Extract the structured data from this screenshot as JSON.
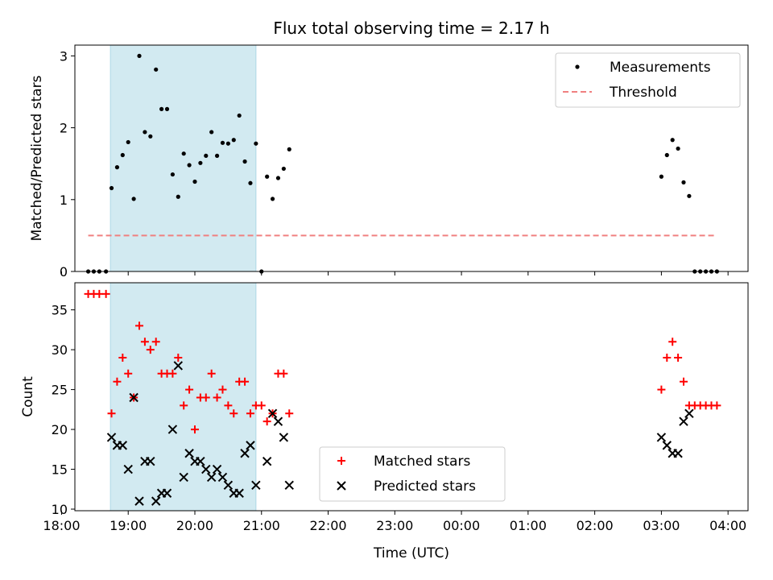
{
  "chart_data": {
    "title": "Flux total observing time = 2.17 h",
    "xlabel": "Time (UTC)",
    "time_base": "18:00",
    "x_ticks": [
      "18:00",
      "19:00",
      "20:00",
      "21:00",
      "22:00",
      "23:00",
      "00:00",
      "01:00",
      "02:00",
      "03:00",
      "04:00"
    ],
    "xlim": [
      "18:12",
      "04:18"
    ],
    "highlight_span": [
      "18:44",
      "20:55"
    ],
    "highlight_color": "#add8e6",
    "panels": [
      {
        "type": "scatter",
        "ylabel": "Matched/Predicted stars",
        "ylim": [
          0,
          3.15
        ],
        "y_ticks": [
          0,
          1,
          2,
          3
        ],
        "legend_position": "top-right",
        "series": [
          {
            "name": "Measurements",
            "marker": "dot",
            "color": "#000000",
            "points": [
              [
                "18:24",
                0
              ],
              [
                "18:29",
                0
              ],
              [
                "18:34",
                0
              ],
              [
                "18:40",
                0
              ],
              [
                "18:45",
                1.16
              ],
              [
                "18:50",
                1.45
              ],
              [
                "18:55",
                1.62
              ],
              [
                "19:00",
                1.8
              ],
              [
                "19:05",
                1.01
              ],
              [
                "19:10",
                3.0
              ],
              [
                "19:15",
                1.94
              ],
              [
                "19:20",
                1.88
              ],
              [
                "19:25",
                2.81
              ],
              [
                "19:30",
                2.26
              ],
              [
                "19:35",
                2.26
              ],
              [
                "19:40",
                1.35
              ],
              [
                "19:45",
                1.04
              ],
              [
                "19:50",
                1.64
              ],
              [
                "19:55",
                1.48
              ],
              [
                "20:00",
                1.25
              ],
              [
                "20:05",
                1.51
              ],
              [
                "20:10",
                1.61
              ],
              [
                "20:15",
                1.94
              ],
              [
                "20:20",
                1.61
              ],
              [
                "20:25",
                1.79
              ],
              [
                "20:30",
                1.78
              ],
              [
                "20:35",
                1.83
              ],
              [
                "20:40",
                2.17
              ],
              [
                "20:45",
                1.53
              ],
              [
                "20:50",
                1.23
              ],
              [
                "20:55",
                1.78
              ],
              [
                "21:00",
                0
              ],
              [
                "21:05",
                1.32
              ],
              [
                "21:10",
                1.01
              ],
              [
                "21:15",
                1.3
              ],
              [
                "21:20",
                1.43
              ],
              [
                "21:25",
                1.7
              ],
              [
                "03:00",
                1.32
              ],
              [
                "03:05",
                1.62
              ],
              [
                "03:10",
                1.83
              ],
              [
                "03:15",
                1.71
              ],
              [
                "03:20",
                1.24
              ],
              [
                "03:25",
                1.05
              ],
              [
                "03:30",
                0
              ],
              [
                "03:35",
                0
              ],
              [
                "03:40",
                0
              ],
              [
                "03:45",
                0
              ],
              [
                "03:50",
                0
              ]
            ]
          },
          {
            "name": "Threshold",
            "marker": "dashed-line",
            "color": "#f08080",
            "points": [
              [
                "18:24",
                0.5
              ],
              [
                "03:50",
                0.5
              ]
            ]
          }
        ]
      },
      {
        "type": "scatter",
        "ylabel": "Count",
        "ylim": [
          9.8,
          38.4
        ],
        "y_ticks": [
          10,
          15,
          20,
          25,
          30,
          35
        ],
        "legend_position": "lower-center",
        "series": [
          {
            "name": "Matched stars",
            "marker": "plus",
            "color": "#ff0000",
            "points": [
              [
                "18:24",
                37
              ],
              [
                "18:29",
                37
              ],
              [
                "18:34",
                37
              ],
              [
                "18:40",
                37
              ],
              [
                "18:45",
                22
              ],
              [
                "18:50",
                26
              ],
              [
                "18:55",
                29
              ],
              [
                "19:00",
                27
              ],
              [
                "19:05",
                24
              ],
              [
                "19:10",
                33
              ],
              [
                "19:15",
                31
              ],
              [
                "19:20",
                30
              ],
              [
                "19:25",
                31
              ],
              [
                "19:30",
                27
              ],
              [
                "19:35",
                27
              ],
              [
                "19:40",
                27
              ],
              [
                "19:45",
                29
              ],
              [
                "19:50",
                23
              ],
              [
                "19:55",
                25
              ],
              [
                "20:00",
                20
              ],
              [
                "20:05",
                24
              ],
              [
                "20:10",
                24
              ],
              [
                "20:15",
                27
              ],
              [
                "20:20",
                24
              ],
              [
                "20:25",
                25
              ],
              [
                "20:30",
                23
              ],
              [
                "20:35",
                22
              ],
              [
                "20:40",
                26
              ],
              [
                "20:45",
                26
              ],
              [
                "20:50",
                22
              ],
              [
                "20:55",
                23
              ],
              [
                "21:00",
                23
              ],
              [
                "21:05",
                21
              ],
              [
                "21:10",
                22
              ],
              [
                "21:15",
                27
              ],
              [
                "21:20",
                27
              ],
              [
                "21:25",
                22
              ],
              [
                "03:00",
                25
              ],
              [
                "03:05",
                29
              ],
              [
                "03:10",
                31
              ],
              [
                "03:15",
                29
              ],
              [
                "03:20",
                26
              ],
              [
                "03:25",
                23
              ],
              [
                "03:30",
                23
              ],
              [
                "03:35",
                23
              ],
              [
                "03:40",
                23
              ],
              [
                "03:45",
                23
              ],
              [
                "03:50",
                23
              ]
            ]
          },
          {
            "name": "Predicted stars",
            "marker": "x",
            "color": "#000000",
            "points": [
              [
                "18:45",
                19
              ],
              [
                "18:50",
                18
              ],
              [
                "18:55",
                18
              ],
              [
                "19:00",
                15
              ],
              [
                "19:05",
                24
              ],
              [
                "19:10",
                11
              ],
              [
                "19:15",
                16
              ],
              [
                "19:20",
                16
              ],
              [
                "19:25",
                11
              ],
              [
                "19:30",
                12
              ],
              [
                "19:35",
                12
              ],
              [
                "19:40",
                20
              ],
              [
                "19:45",
                28
              ],
              [
                "19:50",
                14
              ],
              [
                "19:55",
                17
              ],
              [
                "20:00",
                16
              ],
              [
                "20:05",
                16
              ],
              [
                "20:10",
                15
              ],
              [
                "20:15",
                14
              ],
              [
                "20:20",
                15
              ],
              [
                "20:25",
                14
              ],
              [
                "20:30",
                13
              ],
              [
                "20:35",
                12
              ],
              [
                "20:40",
                12
              ],
              [
                "20:45",
                17
              ],
              [
                "20:50",
                18
              ],
              [
                "20:55",
                13
              ],
              [
                "21:05",
                16
              ],
              [
                "21:10",
                22
              ],
              [
                "21:15",
                21
              ],
              [
                "21:20",
                19
              ],
              [
                "21:25",
                13
              ],
              [
                "03:00",
                19
              ],
              [
                "03:05",
                18
              ],
              [
                "03:10",
                17
              ],
              [
                "03:15",
                17
              ],
              [
                "03:20",
                21
              ],
              [
                "03:25",
                22
              ]
            ]
          }
        ]
      }
    ]
  }
}
